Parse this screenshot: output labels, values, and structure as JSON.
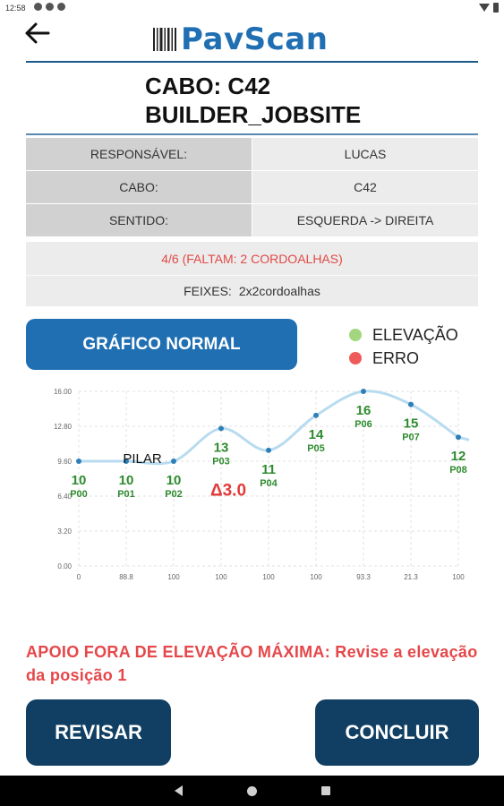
{
  "status_bar": {
    "time": "12:58"
  },
  "app": {
    "name": "PavScan"
  },
  "title": {
    "line1": "CABO: C42",
    "line2": "BUILDER_JOBSITE"
  },
  "info": [
    {
      "key": "RESPONSÁVEL:",
      "value": "LUCAS"
    },
    {
      "key": "CABO:",
      "value": "C42"
    },
    {
      "key": "SENTIDO:",
      "value": "ESQUERDA -> DIREITA"
    }
  ],
  "progress": {
    "missing_text": "4/6 (FALTAM: 2 CORDOALHAS)",
    "bundles_label": "FEIXES:",
    "bundles_value": "2x2cordoalhas"
  },
  "chart_button": {
    "label": "GRÁFICO NORMAL"
  },
  "legend": [
    {
      "label": "ELEVAÇÃO",
      "color": "#a3d77f"
    },
    {
      "label": "ERRO",
      "color": "#ef5a5a"
    }
  ],
  "chart_data": {
    "type": "line",
    "x": [
      "0",
      "88.8",
      "100",
      "100",
      "100",
      "100",
      "93.3",
      "21.3",
      "100"
    ],
    "ylim": [
      0,
      16
    ],
    "yticks": [
      "0.00",
      "3.20",
      "6.40",
      "9.60",
      "12.80",
      "16.00"
    ],
    "series": [
      {
        "values": [
          9.6,
          9.6,
          9.6,
          12.6,
          10.6,
          13.8,
          16.0,
          14.8,
          11.8
        ],
        "value_labels": [
          "10",
          "10",
          "10",
          "13",
          "11",
          "14",
          "16",
          "15",
          "12"
        ],
        "point_labels": [
          "P00",
          "P01",
          "P02",
          "P03",
          "P04",
          "P05",
          "P06",
          "P07",
          "P08"
        ]
      }
    ],
    "annotations": [
      {
        "text": "PILAR",
        "at_index": 1
      },
      {
        "text": "Δ3.0",
        "at_index": 3
      }
    ],
    "line_color": "#b8dbef",
    "point_color": "#2e7fb8",
    "label_color": "#2e8b2e",
    "error_color": "#e23a3a"
  },
  "warning": {
    "text": "APOIO FORA DE ELEVAÇÃO MÁXIMA: Revise a elevação da posição 1"
  },
  "actions": {
    "review_label": "REVISAR",
    "finish_label": "CONCLUIR"
  },
  "colors": {
    "brand": "#1f6fb2",
    "dark_button": "#103f63",
    "error": "#e5474a"
  }
}
